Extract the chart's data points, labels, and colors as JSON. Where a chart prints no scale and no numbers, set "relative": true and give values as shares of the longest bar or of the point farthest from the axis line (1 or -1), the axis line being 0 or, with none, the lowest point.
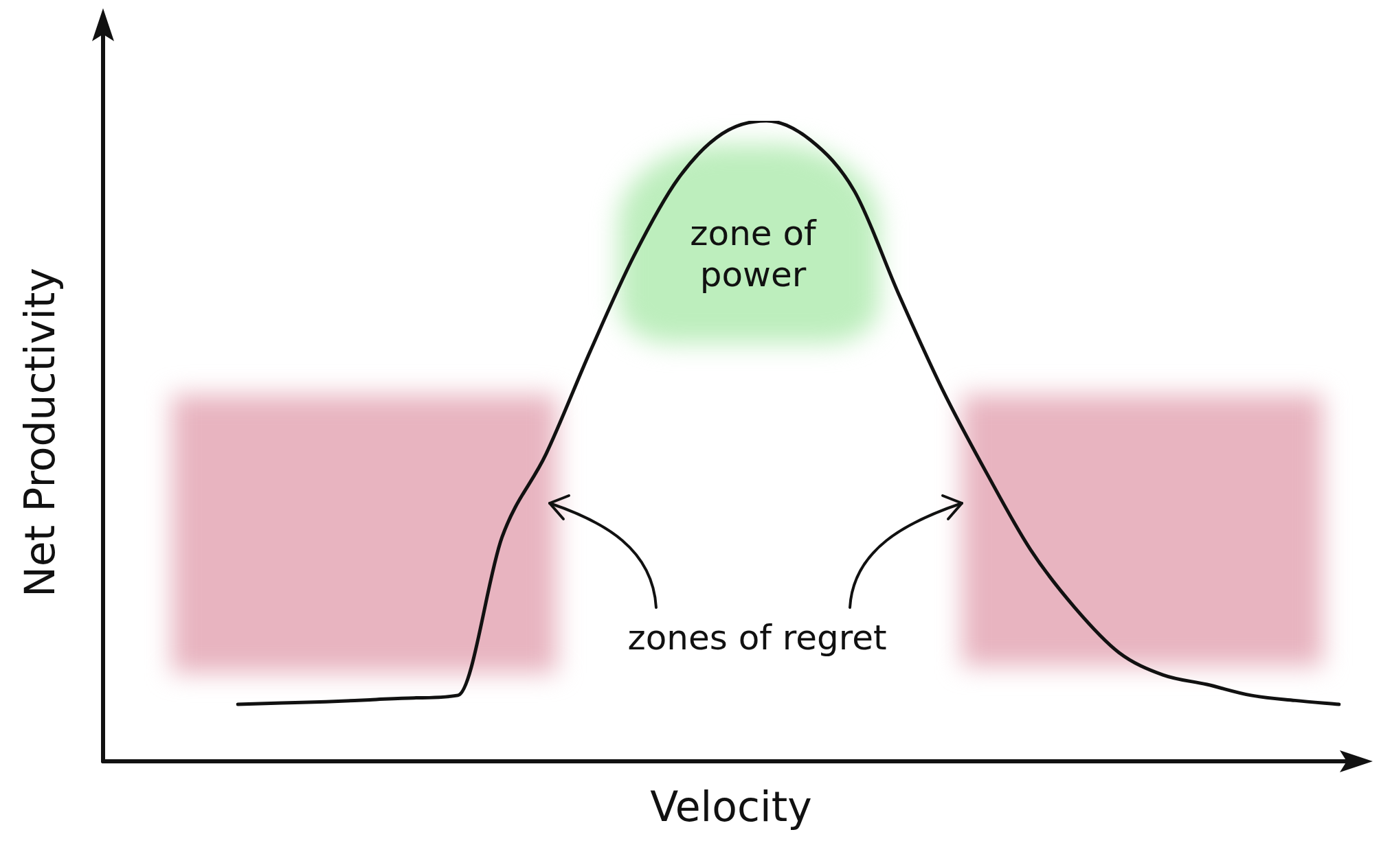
{
  "chart_data": {
    "type": "line",
    "relative": true,
    "xlabel": "Velocity",
    "ylabel": "Net Productivity",
    "annotations": [
      "zone of power",
      "zones of regret"
    ],
    "categories": [
      null,
      null,
      null,
      null,
      null,
      null,
      null,
      null,
      null,
      null,
      null,
      null,
      null,
      null,
      null,
      null,
      null,
      null,
      null,
      null,
      null,
      null,
      null,
      null,
      null,
      null
    ],
    "series": [
      {
        "color": "#111111",
        "values": [
          0.089,
          0.091,
          0.093,
          0.096,
          0.099,
          0.103,
          0.35,
          0.48,
          0.64,
          0.79,
          0.91,
          0.98,
          1.0,
          0.97,
          0.89,
          0.73,
          0.58,
          0.45,
          0.33,
          0.24,
          0.17,
          0.135,
          0.12,
          0.103,
          0.095,
          0.089
        ]
      }
    ],
    "marker": "none",
    "grid": false,
    "legend": false
  }
}
